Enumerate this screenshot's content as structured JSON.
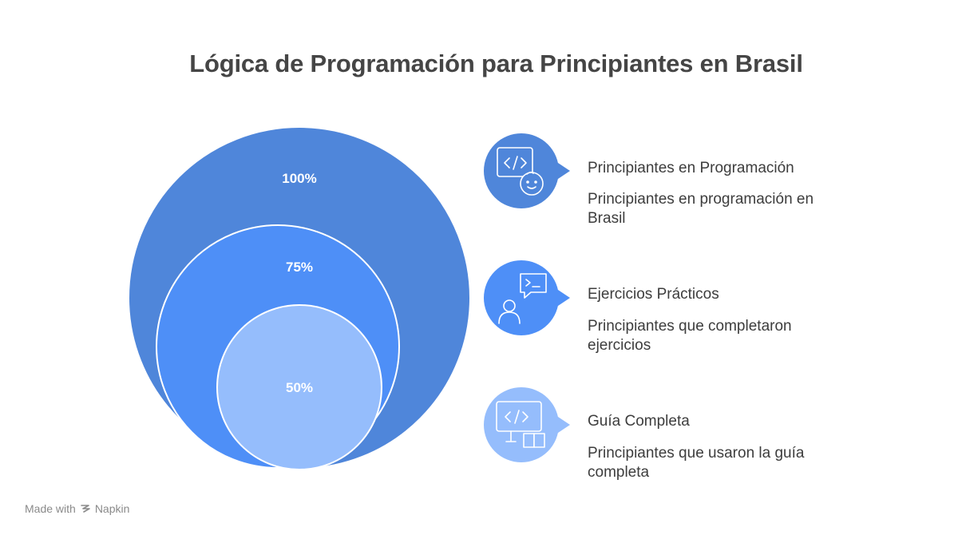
{
  "title": "Lógica de Programación para Principiantes en Brasil",
  "levels": [
    {
      "label": "100%",
      "value": 100,
      "color": "#4f86da"
    },
    {
      "label": "75%",
      "value": 75,
      "color": "#4e8ff7"
    },
    {
      "label": "50%",
      "value": 50,
      "color": "#95bdfc"
    }
  ],
  "items": [
    {
      "title": "Principiantes en Programación",
      "description": "Principiantes en programación en Brasil",
      "icon": "code-window-child-face-icon",
      "color": "#4f86da"
    },
    {
      "title": "Ejercicios Prácticos",
      "description": "Principiantes que completaron ejercicios",
      "icon": "user-terminal-chat-icon",
      "color": "#4e8ff7"
    },
    {
      "title": "Guía Completa",
      "description": "Principiantes que usaron la guía completa",
      "icon": "code-monitor-book-icon",
      "color": "#95bdfc"
    }
  ],
  "footer": {
    "made_with": "Made with",
    "brand": "Napkin",
    "logo_icon": "napkin-logo-icon"
  }
}
